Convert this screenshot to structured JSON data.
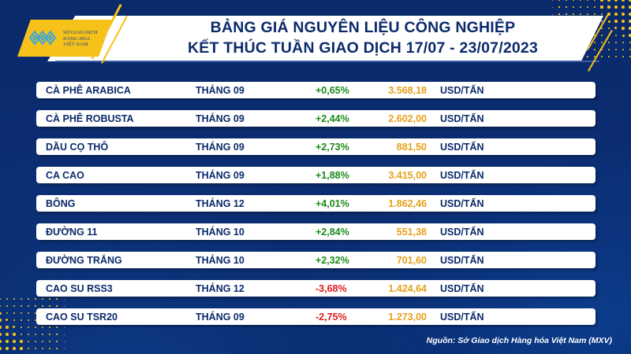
{
  "header": {
    "logo_text": [
      "SỞ GIAO DỊCH",
      "HÀNG HÓA",
      "VIỆT NAM"
    ],
    "title_line1": "BẢNG GIÁ NGUYÊN LIỆU CÔNG NGHIỆP",
    "title_line2": "KẾT THÚC TUẦN GIAO DỊCH 17/07 - 23/07/2023"
  },
  "colors": {
    "background": "#0b2d72",
    "accent_yellow": "#f6c21a",
    "text_navy": "#0b2a6b",
    "up_green": "#1a8a1a",
    "down_red": "#e01b1b",
    "price_orange": "#e6a019"
  },
  "table": {
    "rows": [
      {
        "name": "CÀ PHÊ ARABICA",
        "month": "THÁNG 09",
        "change": "+0,65%",
        "direction": "up",
        "price": "3.568,18",
        "unit": "USD/TẤN"
      },
      {
        "name": "CÀ PHÊ ROBUSTA",
        "month": "THÁNG 09",
        "change": "+2,44%",
        "direction": "up",
        "price": "2.602,00",
        "unit": "USD/TẤN"
      },
      {
        "name": "DẦU CỌ THÔ",
        "month": "THÁNG 09",
        "change": "+2,73%",
        "direction": "up",
        "price": "881,50",
        "unit": "USD/TẤN"
      },
      {
        "name": "CA CAO",
        "month": "THÁNG 09",
        "change": "+1,88%",
        "direction": "up",
        "price": "3.415,00",
        "unit": "USD/TẤN"
      },
      {
        "name": "BÔNG",
        "month": "THÁNG 12",
        "change": "+4,01%",
        "direction": "up",
        "price": "1.862,46",
        "unit": "USD/TẤN"
      },
      {
        "name": "ĐƯỜNG 11",
        "month": "THÁNG 10",
        "change": "+2,84%",
        "direction": "up",
        "price": "551,38",
        "unit": "USD/TẤN"
      },
      {
        "name": "ĐƯỜNG TRẮNG",
        "month": "THÁNG 10",
        "change": "+2,32%",
        "direction": "up",
        "price": "701,60",
        "unit": "USD/TẤN"
      },
      {
        "name": "CAO SU RSS3",
        "month": "THÁNG 12",
        "change": "-3,68%",
        "direction": "down",
        "price": "1.424,64",
        "unit": "USD/TẤN"
      },
      {
        "name": "CAO SU TSR20",
        "month": "THÁNG 09",
        "change": "-2,75%",
        "direction": "down",
        "price": "1.273,00",
        "unit": "USD/TẤN"
      }
    ]
  },
  "footer": {
    "source": "Nguồn: Sở Giao dịch Hàng hóa Việt Nam (MXV)"
  }
}
